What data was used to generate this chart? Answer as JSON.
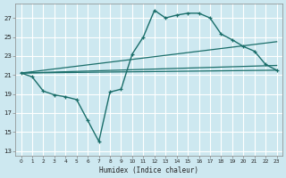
{
  "xlabel": "Humidex (Indice chaleur)",
  "bg_color": "#cde8f0",
  "grid_color": "#ffffff",
  "line_color": "#1a6e6a",
  "x_ticks": [
    0,
    1,
    2,
    3,
    4,
    5,
    6,
    7,
    8,
    9,
    10,
    11,
    12,
    13,
    14,
    15,
    16,
    17,
    18,
    19,
    20,
    21,
    22,
    23
  ],
  "y_ticks": [
    13,
    15,
    17,
    19,
    21,
    23,
    25,
    27
  ],
  "ylim": [
    12.5,
    28.5
  ],
  "xlim": [
    -0.5,
    23.5
  ],
  "series1_x": [
    0,
    1,
    2,
    3,
    4,
    5,
    6,
    7,
    8,
    9,
    10,
    11,
    12,
    13,
    14,
    15,
    16,
    17,
    18,
    19,
    20,
    21,
    22,
    23
  ],
  "series1_y": [
    21.2,
    20.8,
    19.3,
    18.9,
    18.7,
    18.4,
    16.2,
    14.0,
    19.2,
    19.5,
    23.2,
    25.0,
    27.8,
    27.0,
    27.3,
    27.5,
    27.5,
    27.0,
    25.3,
    24.7,
    24.0,
    23.5,
    22.1,
    21.5
  ],
  "series2_x": [
    0,
    23
  ],
  "series2_y": [
    21.2,
    24.5
  ],
  "series3_x": [
    0,
    23
  ],
  "series3_y": [
    21.2,
    22.0
  ],
  "series4_x": [
    0,
    23
  ],
  "series4_y": [
    21.2,
    21.5
  ]
}
